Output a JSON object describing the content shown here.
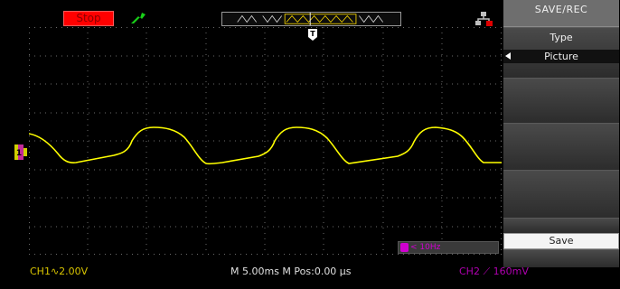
{
  "status": {
    "run_state": "Stop"
  },
  "menu": {
    "title": "SAVE/REC",
    "type_label": "Type",
    "type_value": "Picture",
    "save_label": "Save"
  },
  "trigger": {
    "frequency": "< 10Hz"
  },
  "bottom": {
    "ch1": "CH1∿2.00V",
    "timebase": "M 5.00ms   M Pos:0.00 µs",
    "ch2": "CH2 ⟋ 160mV"
  },
  "markers": {
    "trigger_position": "T",
    "ch1": "1"
  },
  "colors": {
    "ch1": "#ffff00",
    "ch2": "#b000b0",
    "stop": "#ff0000",
    "grid": "#6a6a6a"
  },
  "icons": [
    "run-icon",
    "memory-bar-icon",
    "usb-icon",
    "trigger-icon",
    "left-arrow-icon"
  ]
}
